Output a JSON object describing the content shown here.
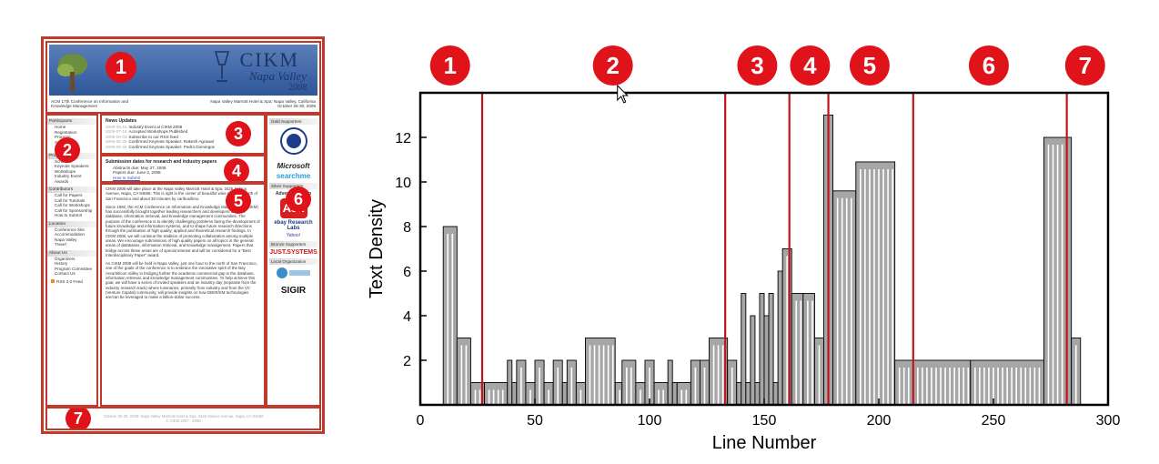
{
  "webpage": {
    "logo": {
      "title": "CIKM",
      "subtitle": "Napa Valley",
      "year": "2008"
    },
    "header_left": "ACM 17th Conference on Information and Knowledge Management",
    "header_right": "Napa Valley Marriott Hotel & Spa: Napa Valley, California\nOctober 26-30, 2008",
    "nav": [
      {
        "heading": "Participants",
        "items": [
          "Home",
          "Registration",
          "Program",
          "Submission",
          "Schedule"
        ]
      },
      {
        "heading": "Program",
        "items": [
          "Schedule",
          "Keynote Speakers",
          "Workshops",
          "Industry Event",
          "Awards"
        ]
      },
      {
        "heading": "Contributors",
        "items": [
          "Call for Papers",
          "Call for Tutorials",
          "Call for Workshops",
          "Call for Sponsorship",
          "How to Submit"
        ]
      },
      {
        "heading": "Location",
        "items": [
          "Conference Site",
          "Accommodation",
          "Napa Valley",
          "Travel"
        ]
      },
      {
        "heading": "About Us",
        "items": [
          "Organizers",
          "History",
          "Program Committee",
          "Contact Us"
        ]
      }
    ],
    "rss": "RSS 2.0 Feed",
    "news_title": "News Updates",
    "news": [
      {
        "date": "2008-09-15",
        "text": "Industry Event at CIKM 2008"
      },
      {
        "date": "2008-07-18",
        "text": "Accepted Workshops Published"
      },
      {
        "date": "2008-06-03",
        "text": "Subscribe to our RSS feed"
      },
      {
        "date": "2008-05-28",
        "text": "Confirmed Keynote Speaker: Rakesh Agrawal"
      },
      {
        "date": "2008-05-28",
        "text": "Confirmed Keynote Speaker: Pedro Domingos"
      }
    ],
    "dates_title": "Submission dates for research and industry papers",
    "dates": [
      "Abstracts due: May 27, 2008",
      "Papers due: June 3, 2008",
      "How to Submit"
    ],
    "body": [
      "CIKM 2008 will take place at the Napa Valley Marriott Hotel & Spa, 3425 Solano Avenue, Napa, CA 94558. This is right in the center of beautiful wine country - north of San Francisco and about 30 minutes by car/bus/limo.",
      "Since 1992, the ACM Conference on Information and Knowledge Management (CIKM) has successfully brought together leading researchers and developers from the database, information retrieval, and knowledge management communities. The purpose of the conference is to identify challenging problems facing the development of future knowledge and information systems, and to shape future research directions through the publication of high quality, applied and theoretical research findings. In CIKM 2008, we will continue the tradition of promoting collaboration among multiple areas. We encourage submissions of high quality papers on all topics in the general areas of databases, information retrieval, and knowledge management. Papers that bridge across these areas are of special interest and will be considered for a \"Best Interdisciplinary Paper\" award.",
      "As CIKM 2008 will be held in Napa Valley, just one hour to the north of San Francisco, one of the goals of the conference is to embrace the innovative spirit of the Bay Area/Silicon Valley in bridging further the academic-commercial gap in the database, information retrieval, and knowledge management communities. To help achieve this goal, we will have a series of invited speakers and an industry day (separate from the industry research track) where luminaries, primarily from industry and from the VC (Venture Capital) community, will provide insights on how DB/IR/KM technologies are/can be leveraged to make a billion-dollar success."
    ],
    "side": {
      "gold": "Gold Supporters",
      "silver": "Silver Supporters",
      "bronze": "Bronze Supporters",
      "local": "Local Organization",
      "logos": [
        "Microsoft",
        "searchme",
        "Advertising.com",
        "Ask",
        "ebay Research Labs",
        "Yahoo!",
        "JUST.SYSTEMS",
        "SIGIR"
      ]
    },
    "footer": "October 26-30, 2008: Napa Valley Marriott Hotel & Spa, 3425 Solano Avenue, Napa, CA 94558\n© CIKM 2007 - 2008",
    "markers": [
      "1",
      "2",
      "3",
      "4",
      "5",
      "6",
      "7"
    ]
  },
  "chart_data": {
    "type": "bar",
    "title": "",
    "xlabel": "Line Number",
    "ylabel": "Text Density",
    "xlim": [
      0,
      300
    ],
    "ylim": [
      0,
      14
    ],
    "xticks": [
      0,
      50,
      100,
      150,
      200,
      250,
      300
    ],
    "yticks": [
      2,
      4,
      6,
      8,
      10,
      12
    ],
    "grid": false,
    "bar_color": "#a6a6a6",
    "boundary_color": "#c0151b",
    "density_steps": [
      [
        10,
        16,
        8
      ],
      [
        16,
        22,
        3
      ],
      [
        22,
        28,
        1
      ],
      [
        28,
        38,
        1
      ],
      [
        38,
        40,
        2
      ],
      [
        40,
        42,
        1
      ],
      [
        42,
        46,
        2
      ],
      [
        46,
        50,
        1
      ],
      [
        50,
        54,
        2
      ],
      [
        54,
        58,
        1
      ],
      [
        58,
        62,
        2
      ],
      [
        62,
        64,
        1
      ],
      [
        64,
        68,
        2
      ],
      [
        68,
        72,
        1
      ],
      [
        72,
        85,
        3
      ],
      [
        85,
        88,
        1
      ],
      [
        88,
        94,
        2
      ],
      [
        94,
        98,
        1
      ],
      [
        98,
        102,
        2
      ],
      [
        102,
        108,
        1
      ],
      [
        108,
        110,
        2
      ],
      [
        110,
        112,
        1
      ],
      [
        112,
        118,
        1
      ],
      [
        118,
        122,
        2
      ],
      [
        122,
        126,
        2
      ],
      [
        126,
        134,
        3
      ],
      [
        134,
        138,
        2
      ],
      [
        138,
        140,
        1
      ],
      [
        140,
        142,
        5
      ],
      [
        142,
        144,
        1
      ],
      [
        144,
        146,
        4
      ],
      [
        146,
        148,
        1
      ],
      [
        148,
        150,
        5
      ],
      [
        150,
        152,
        4
      ],
      [
        152,
        154,
        5
      ],
      [
        154,
        156,
        1
      ],
      [
        156,
        158,
        6
      ],
      [
        158,
        162,
        7
      ],
      [
        162,
        167,
        5
      ],
      [
        167,
        172,
        5
      ],
      [
        172,
        176,
        3
      ],
      [
        176,
        180,
        13
      ],
      [
        180,
        190,
        9.6
      ],
      [
        190,
        207,
        10.9
      ],
      [
        207,
        240,
        2
      ],
      [
        240,
        272,
        2
      ],
      [
        272,
        284,
        12
      ],
      [
        284,
        288,
        3
      ]
    ],
    "boundaries": [
      27,
      133,
      161,
      178,
      215,
      282
    ],
    "section_labels": [
      {
        "label": "1",
        "x": 13
      },
      {
        "label": "2",
        "x": 84
      },
      {
        "label": "3",
        "x": 147
      },
      {
        "label": "4",
        "x": 170
      },
      {
        "label": "5",
        "x": 196
      },
      {
        "label": "6",
        "x": 248
      },
      {
        "label": "7",
        "x": 290
      }
    ]
  }
}
